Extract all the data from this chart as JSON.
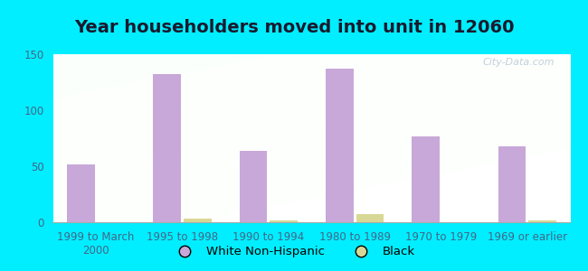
{
  "title": "Year householders moved into unit in 12060",
  "categories": [
    "1999 to March\n2000",
    "1995 to 1998",
    "1990 to 1994",
    "1980 to 1989",
    "1970 to 1979",
    "1969 or earlier"
  ],
  "white_values": [
    52,
    132,
    64,
    137,
    77,
    68
  ],
  "black_values": [
    0,
    3,
    2,
    7,
    0,
    2
  ],
  "white_color": "#c8a8d8",
  "black_color": "#d8d896",
  "background_outer": "#00eeff",
  "ylim": [
    0,
    150
  ],
  "yticks": [
    0,
    50,
    100,
    150
  ],
  "bar_width": 0.32,
  "legend_labels": [
    "White Non-Hispanic",
    "Black"
  ],
  "title_fontsize": 14,
  "tick_fontsize": 8.5,
  "legend_fontsize": 9.5
}
